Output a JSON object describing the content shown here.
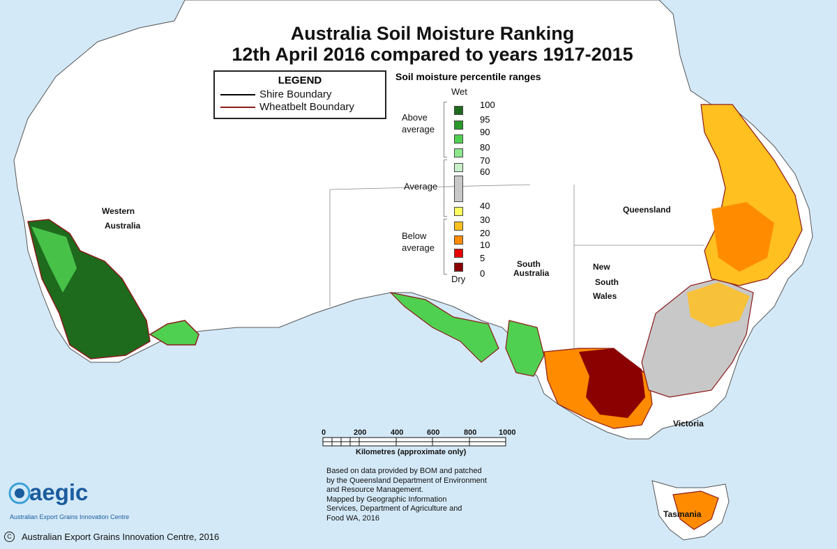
{
  "title": {
    "line1": "Australia Soil Moisture Ranking",
    "line2": "12th April 2016 compared to years 1917-2015"
  },
  "legend": {
    "title": "LEGEND",
    "shire": "Shire Boundary",
    "wheatbelt": "Wheatbelt Boundary",
    "shire_color": "#000000",
    "wheatbelt_color": "#8b1a1a"
  },
  "percentile": {
    "title": "Soil moisture percentile ranges",
    "wet": "Wet",
    "dry": "Dry",
    "above1": "Above",
    "above2": "average",
    "average": "Average",
    "below1": "Below",
    "below2": "average",
    "values": [
      "100",
      "95",
      "90",
      "80",
      "70",
      "60",
      "40",
      "30",
      "20",
      "10",
      "5",
      "0"
    ],
    "colors": [
      "#1e6b1e",
      "#2a9a2a",
      "#50d050",
      "#8de88d",
      "#c8f0c8",
      "#c8c8c8",
      "#ffff60",
      "#ffc020",
      "#ff8c00",
      "#e60000",
      "#8b0000"
    ]
  },
  "regions": {
    "wa1": "Western",
    "wa2": "Australia",
    "sa1": "South",
    "sa2": "Australia",
    "qld": "Queensland",
    "nsw1": "New",
    "nsw2": "South",
    "nsw3": "Wales",
    "vic": "Victoria",
    "tas": "Tasmania"
  },
  "scale": {
    "ticks": [
      "0",
      "200",
      "400",
      "600",
      "800",
      "1000"
    ],
    "label": "Kilometres (approximate only)"
  },
  "notes": {
    "l1": "Based on data provided by BOM and patched",
    "l2": "by the Queensland Department of Environment",
    "l3": "and Resource Management.",
    "l4": "Mapped by Geographic Information",
    "l5": "Services, Department of Agriculture and",
    "l6": "Food WA, 2016"
  },
  "logo": {
    "name": "aegic",
    "sub": "Australian Export Grains Innovation Centre"
  },
  "copyright": "Australian Export Grains Innovation Centre, 2016",
  "colors": {
    "ocean": "#d4e9f7",
    "land": "#ffffff"
  }
}
